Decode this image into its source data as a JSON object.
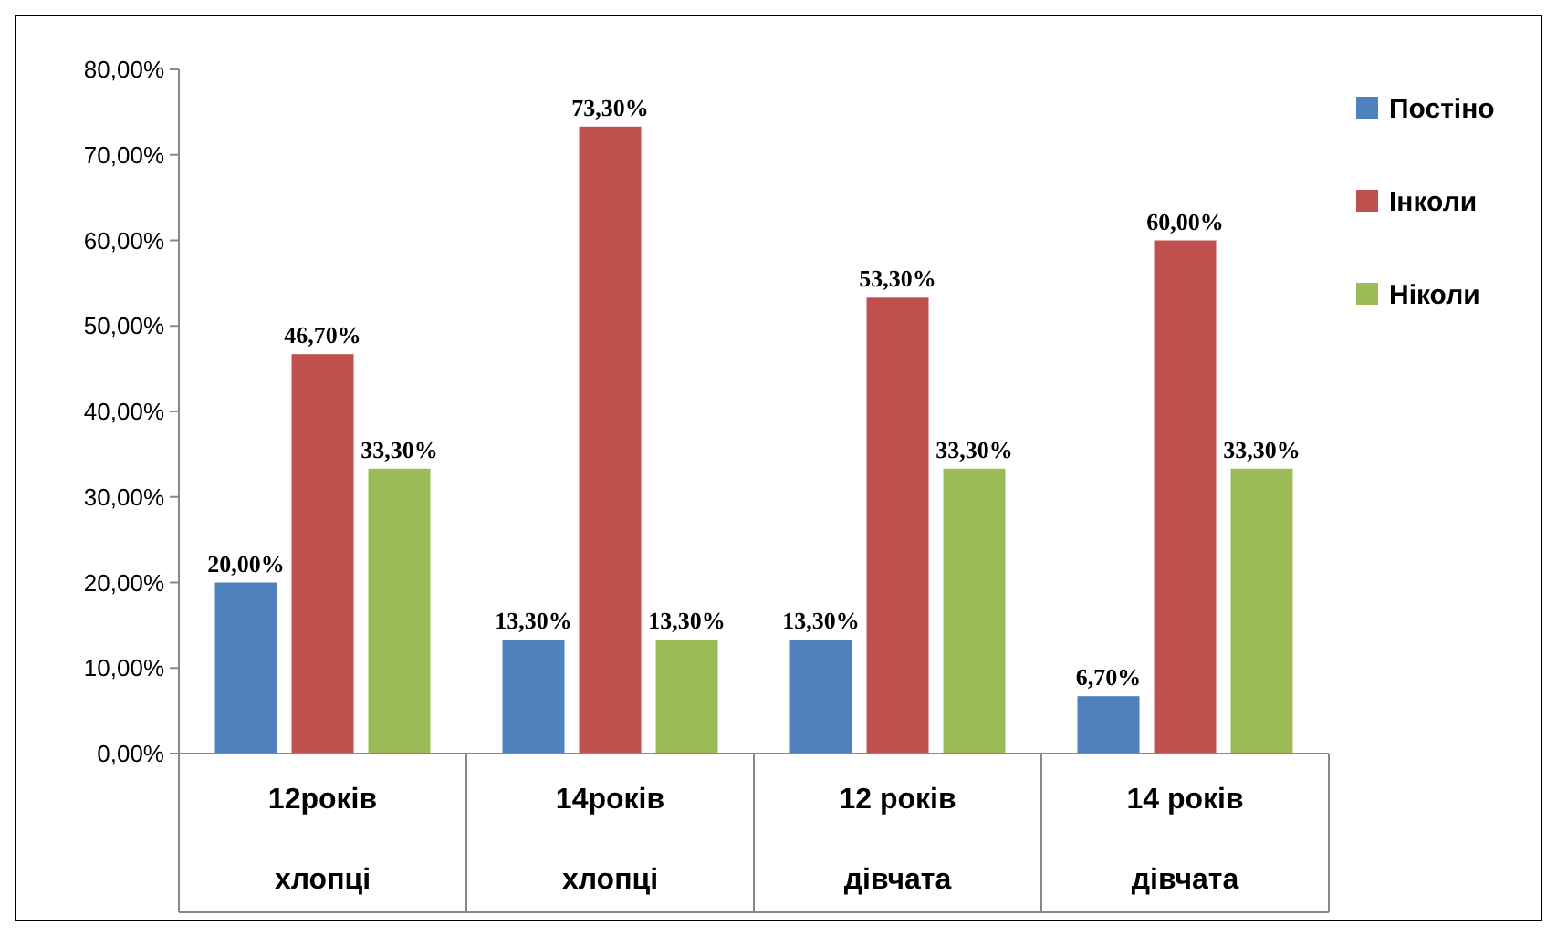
{
  "chart_data": {
    "type": "bar",
    "categories": [
      "12років\nхлопці",
      "14років\nхлопці",
      "12 років\nдівчата",
      "14 років\nдівчата"
    ],
    "series": [
      {
        "name": "Постіно",
        "color": "#4f81bd",
        "values": [
          20,
          13.3,
          13.3,
          6.7
        ],
        "value_labels": [
          "20,00%",
          "13,30%",
          "13,30%",
          "6,70%"
        ]
      },
      {
        "name": "Інколи",
        "color": "#c0504d",
        "values": [
          46.7,
          73.3,
          53.3,
          60
        ],
        "value_labels": [
          "46,70%",
          "73,30%",
          "53,30%",
          "60,00%"
        ]
      },
      {
        "name": "Ніколи",
        "color": "#9bbb59",
        "values": [
          33.3,
          13.3,
          33.3,
          33.3
        ],
        "value_labels": [
          "33,30%",
          "13,30%",
          "33,30%",
          "33,30%"
        ]
      }
    ],
    "ylim": [
      0,
      80
    ],
    "yticks": [
      {
        "value": 0,
        "label": "0,00%"
      },
      {
        "value": 10,
        "label": "10,00%"
      },
      {
        "value": 20,
        "label": "20,00%"
      },
      {
        "value": 30,
        "label": "30,00%"
      },
      {
        "value": 40,
        "label": "40,00%"
      },
      {
        "value": 50,
        "label": "50,00%"
      },
      {
        "value": 60,
        "label": "60,00%"
      },
      {
        "value": 70,
        "label": "70,00%"
      },
      {
        "value": 80,
        "label": "80,00%"
      }
    ],
    "legend": "right"
  }
}
